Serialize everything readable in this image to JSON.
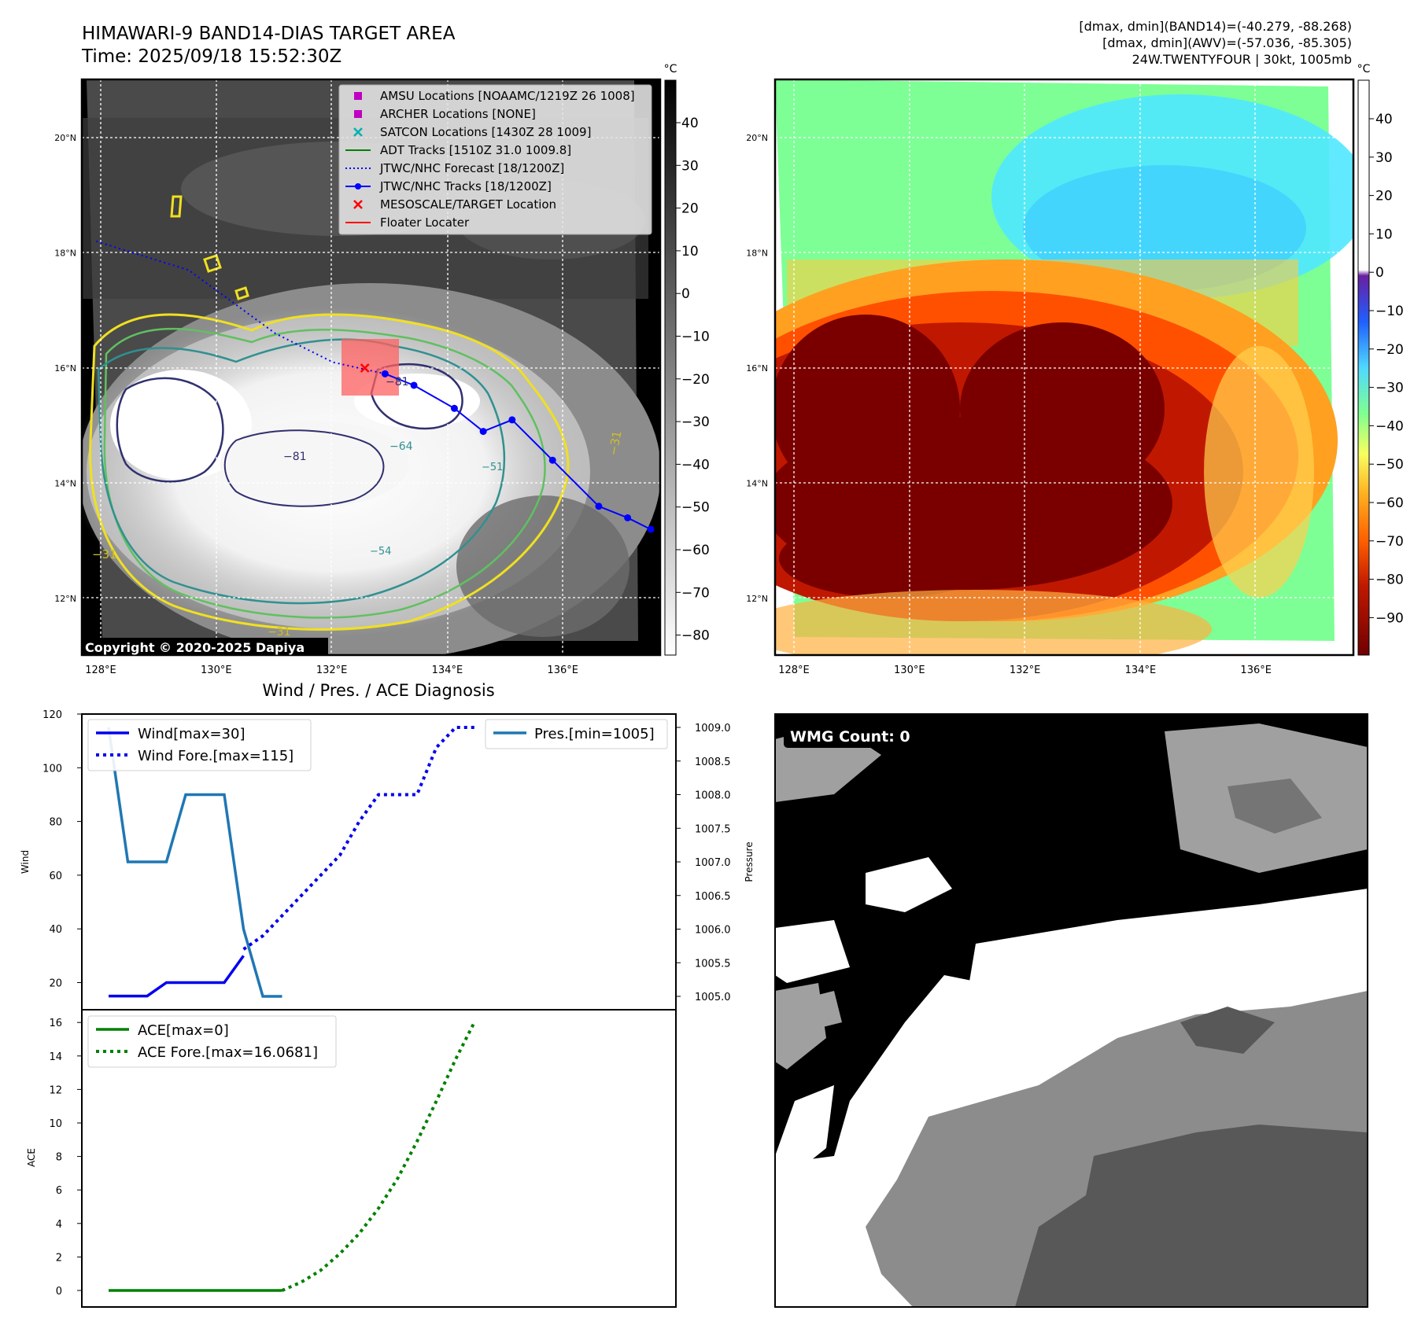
{
  "header": {
    "title_line1": "HIMAWARI-9 BAND14-DIAS TARGET AREA",
    "title_line2": "Time: 2025/09/18 15:52:30Z",
    "right_line1": "[dmax, dmin](BAND14)=(-40.279, -88.268)",
    "right_line2": "[dmax, dmin](AWV)=(-57.036, -85.305)",
    "right_line3": "24W.TWENTYFOUR | 30kt, 1005mb"
  },
  "map_axes": {
    "lat_labels": [
      "20°N",
      "18°N",
      "16°N",
      "14°N",
      "12°N"
    ],
    "lon_labels": [
      "128°E",
      "130°E",
      "132°E",
      "134°E",
      "136°E"
    ]
  },
  "ir_panel": {
    "copyright": "Copyright © 2020-2025 Dapiya",
    "colorbar_unit": "°C",
    "colorbar_ticks": [
      "40",
      "30",
      "20",
      "10",
      "0",
      "−10",
      "−20",
      "−30",
      "−40",
      "−50",
      "−60",
      "−70",
      "−80"
    ],
    "contour_labels": [
      "−31",
      "−31",
      "−31",
      "−64",
      "−81",
      "−81",
      "−54",
      "−51"
    ],
    "legend": [
      {
        "label": "AMSU Locations [NOAAMC/1219Z 26 1008]",
        "color": "#c000c0",
        "marker": "square"
      },
      {
        "label": "ARCHER Locations [NONE]",
        "color": "#c000c0",
        "marker": "square"
      },
      {
        "label": "SATCON Locations [1430Z 28 1009]",
        "color": "#00b0b0",
        "marker": "x"
      },
      {
        "label": "ADT Tracks [1510Z 31.0 1009.8]",
        "color": "#008000",
        "marker": "line"
      },
      {
        "label": "JTWC/NHC Forecast [18/1200Z]",
        "color": "#0000ff",
        "marker": "dotted"
      },
      {
        "label": "JTWC/NHC Tracks [18/1200Z]",
        "color": "#0000ff",
        "marker": "line-dot"
      },
      {
        "label": "MESOSCALE/TARGET Location",
        "color": "#ff0000",
        "marker": "x"
      },
      {
        "label": "Floater Locater",
        "color": "#ff0000",
        "marker": "line"
      }
    ],
    "track_points": [
      [
        132.9,
        15.9
      ],
      [
        133.4,
        15.7
      ],
      [
        134.1,
        15.3
      ],
      [
        134.6,
        14.9
      ],
      [
        135.1,
        15.1
      ],
      [
        135.8,
        14.4
      ],
      [
        136.6,
        13.6
      ],
      [
        137.1,
        13.4
      ],
      [
        137.5,
        13.2
      ]
    ],
    "forecast_track": [
      [
        127.9,
        18.2
      ],
      [
        129.5,
        17.7
      ],
      [
        131.0,
        16.6
      ],
      [
        132.0,
        16.1
      ],
      [
        132.9,
        15.9
      ]
    ],
    "target_location": [
      132.55,
      16.0
    ],
    "colors": {
      "track": "#0000ff",
      "contour_yellow": "#f0e020",
      "contour_green": "#60c060",
      "contour_teal": "#309090",
      "contour_navy": "#303070"
    }
  },
  "awv_panel": {
    "colorbar_unit": "°C",
    "colorbar_ticks": [
      "40",
      "30",
      "20",
      "10",
      "0",
      "−10",
      "−20",
      "−30",
      "−40",
      "−50",
      "−60",
      "−70",
      "−80",
      "−90"
    ]
  },
  "wmg_panel": {
    "label": "WMG Count: 0",
    "palette": [
      "#000000",
      "#ffffff",
      "#a0a0a0",
      "#8c8c8c",
      "#585858"
    ]
  },
  "diag": {
    "title": "Wind / Pres. / ACE Diagnosis",
    "wind_ylabel": "Wind",
    "pres_ylabel": "Pressure",
    "ace_ylabel": "ACE",
    "wind_yticks": [
      "120",
      "100",
      "80",
      "60",
      "40",
      "20"
    ],
    "pres_yticks": [
      "1009.0",
      "1008.5",
      "1008.0",
      "1007.5",
      "1007.0",
      "1006.5",
      "1006.0",
      "1005.5",
      "1005.0"
    ],
    "ace_yticks": [
      "16",
      "14",
      "12",
      "10",
      "8",
      "6",
      "4",
      "2",
      "0"
    ],
    "legend_wind": "Wind[max=30]",
    "legend_wind_fore": "Wind Fore.[max=115]",
    "legend_pres": "Pres.[min=1005]",
    "legend_ace": "ACE[max=0]",
    "legend_ace_fore": "ACE Fore.[max=16.0681]"
  },
  "chart_data": [
    {
      "type": "line",
      "title": "Wind / Pres. / ACE Diagnosis",
      "ylabel": "Wind",
      "ylim": [
        13,
        120
      ],
      "series": [
        {
          "name": "Wind[max=30]",
          "x": [
            0,
            1,
            2,
            3,
            4,
            5,
            6,
            7
          ],
          "values": [
            15,
            15,
            15,
            20,
            20,
            20,
            20,
            30
          ]
        },
        {
          "name": "Wind Fore.[max=115]",
          "x": [
            7,
            8,
            9,
            10,
            11,
            12,
            13,
            14,
            15,
            16,
            17,
            18,
            19
          ],
          "values": [
            30,
            37,
            45,
            53,
            61,
            69,
            78,
            88,
            94,
            100,
            106,
            112,
            115
          ]
        }
      ]
    },
    {
      "type": "line",
      "ylabel": "Pressure",
      "ylim": [
        1004.9,
        1009.2
      ],
      "series": [
        {
          "name": "Pres.[min=1005]",
          "x": [
            0,
            1,
            2,
            3,
            4,
            5,
            6,
            7,
            8,
            9
          ],
          "values": [
            1009.0,
            1007.0,
            1007.0,
            1007.0,
            1008.0,
            1008.0,
            1008.0,
            1006.0,
            1005.0,
            1005.0
          ]
        },
        {
          "x": [
            7,
            8,
            9,
            10,
            11,
            12,
            13,
            14,
            15,
            16,
            17,
            18,
            19
          ],
          "values": [
            1005.7,
            1005.9,
            1006.2,
            1006.5,
            1006.8,
            1007.1,
            1007.6,
            1008.0,
            1008.0,
            1008.0,
            1008.7,
            1009.0,
            1009.0
          ]
        }
      ]
    },
    {
      "type": "line",
      "ylabel": "ACE",
      "ylim": [
        -0.8,
        17
      ],
      "series": [
        {
          "name": "ACE[max=0]",
          "x": [
            0,
            1,
            2,
            3,
            4,
            5,
            6,
            7,
            8,
            9
          ],
          "values": [
            0,
            0,
            0,
            0,
            0,
            0,
            0,
            0,
            0,
            0
          ]
        },
        {
          "name": "ACE Fore.[max=16.0681]",
          "x": [
            9,
            10,
            11,
            12,
            13,
            14,
            15,
            16,
            17,
            18,
            19
          ],
          "values": [
            0,
            0.5,
            1.2,
            2.2,
            3.4,
            4.9,
            6.7,
            8.9,
            11.3,
            13.8,
            16.07
          ]
        }
      ]
    }
  ]
}
